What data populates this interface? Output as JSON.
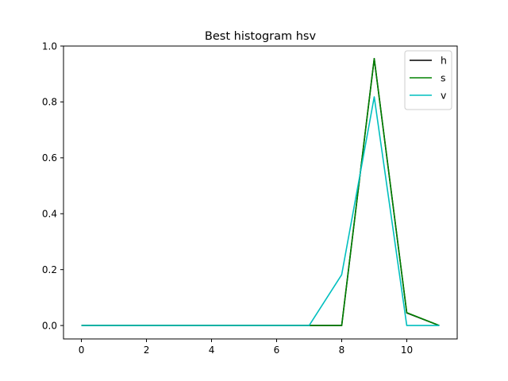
{
  "chart_data": {
    "type": "line",
    "title": "Best histogram hsv",
    "xlabel": "",
    "ylabel": "",
    "x": [
      0,
      1,
      2,
      3,
      4,
      5,
      6,
      7,
      8,
      9,
      10,
      11
    ],
    "xlim": [
      -0.55,
      11.55
    ],
    "ylim": [
      -0.048,
      1.0
    ],
    "xticks": [
      0,
      2,
      4,
      6,
      8,
      10
    ],
    "yticks": [
      0.0,
      0.2,
      0.4,
      0.6,
      0.8,
      1.0
    ],
    "xtick_labels": [
      "0",
      "2",
      "4",
      "6",
      "8",
      "10"
    ],
    "ytick_labels": [
      "0.0",
      "0.2",
      "0.4",
      "0.6",
      "0.8",
      "1.0"
    ],
    "grid": false,
    "legend_position": "top-right",
    "series": [
      {
        "name": "h",
        "color": "#000000",
        "values": [
          0,
          0,
          0,
          0,
          0,
          0,
          0,
          0,
          0,
          0.955,
          0.045,
          0
        ]
      },
      {
        "name": "s",
        "color": "#008000",
        "values": [
          0,
          0,
          0,
          0,
          0,
          0,
          0,
          0,
          0,
          0.955,
          0.046,
          0
        ]
      },
      {
        "name": "v",
        "color": "#00bfbf",
        "values": [
          0,
          0,
          0,
          0,
          0,
          0,
          0,
          0,
          0.182,
          0.818,
          0,
          0
        ]
      }
    ]
  }
}
